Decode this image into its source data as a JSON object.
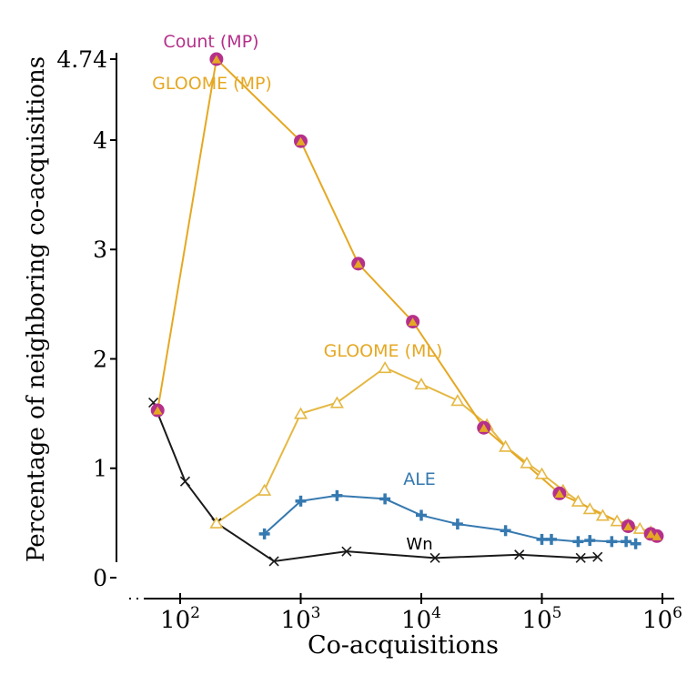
{
  "chart_data": {
    "type": "line",
    "title": "",
    "xlabel": "Co-acquisitions",
    "ylabel": "Percentage of neighboring co-acquisitions",
    "xscale": "log",
    "xlim": [
      35,
      1000000
    ],
    "ylim": [
      0,
      4.74
    ],
    "x_ticks": [
      {
        "value": 100,
        "base": "10",
        "exp": "2"
      },
      {
        "value": 1000,
        "base": "10",
        "exp": "3"
      },
      {
        "value": 10000,
        "base": "10",
        "exp": "4"
      },
      {
        "value": 100000,
        "base": "10",
        "exp": "5"
      },
      {
        "value": 1000000,
        "base": "10",
        "exp": "6"
      }
    ],
    "y_ticks": [
      {
        "value": 0,
        "label": "0"
      },
      {
        "value": 1,
        "label": "1"
      },
      {
        "value": 2,
        "label": "2"
      },
      {
        "value": 3,
        "label": "3"
      },
      {
        "value": 4,
        "label": "4"
      },
      {
        "value": 4.74,
        "label": "4.74"
      }
    ],
    "grid": false,
    "series": [
      {
        "name": "Count (MP)",
        "color": "#b5308a",
        "marker": "circle",
        "line": false,
        "x": [
          65,
          200,
          1000,
          3000,
          8500,
          33000,
          140000,
          520000,
          800000,
          900000
        ],
        "y": [
          1.53,
          4.74,
          3.99,
          2.87,
          2.34,
          1.37,
          0.77,
          0.47,
          0.4,
          0.38
        ]
      },
      {
        "name": "GLOOME (MP)",
        "color": "#e5a823",
        "marker": "filled-triangle",
        "line": true,
        "x": [
          65,
          200,
          1000,
          3000,
          8500,
          33000,
          140000,
          520000,
          800000,
          900000
        ],
        "y": [
          1.53,
          4.74,
          3.99,
          2.87,
          2.34,
          1.37,
          0.77,
          0.47,
          0.4,
          0.38
        ]
      },
      {
        "name": "GLOOME (ML)",
        "color": "#e5b843",
        "marker": "open-triangle",
        "line": true,
        "x": [
          200,
          500,
          1000,
          2000,
          5000,
          10000,
          20000,
          35000,
          50000,
          75000,
          100000,
          150000,
          200000,
          250000,
          320000,
          420000,
          520000,
          650000,
          800000
        ],
        "y": [
          0.5,
          0.8,
          1.5,
          1.6,
          1.92,
          1.77,
          1.62,
          1.4,
          1.2,
          1.05,
          0.95,
          0.8,
          0.7,
          0.63,
          0.57,
          0.52,
          0.49,
          0.45,
          0.42
        ]
      },
      {
        "name": "ALE",
        "color": "#3579b0",
        "marker": "plus",
        "line": true,
        "x": [
          500,
          1000,
          2000,
          5000,
          10000,
          20000,
          50000,
          100000,
          120000,
          200000,
          250000,
          380000,
          500000,
          600000
        ],
        "y": [
          0.4,
          0.7,
          0.75,
          0.72,
          0.57,
          0.49,
          0.43,
          0.35,
          0.35,
          0.33,
          0.34,
          0.33,
          0.33,
          0.31
        ]
      },
      {
        "name": "Wn",
        "color": "#1a1a1a",
        "marker": "x",
        "line": true,
        "x": [
          60,
          110,
          200,
          600,
          2400,
          13000,
          65000,
          210000,
          290000
        ],
        "y": [
          1.6,
          0.88,
          0.5,
          0.15,
          0.24,
          0.18,
          0.21,
          0.18,
          0.19
        ]
      }
    ],
    "annotations": [
      {
        "series": "Count (MP)",
        "text": "Count (MP)",
        "color": "#b5308a"
      },
      {
        "series": "GLOOME (MP)",
        "text": "GLOOME (MP)",
        "color": "#e5a823"
      },
      {
        "series": "GLOOME (ML)",
        "text": "GLOOME (ML)",
        "color": "#e5a823"
      },
      {
        "series": "ALE",
        "text": "ALE",
        "color": "#3579b0"
      },
      {
        "series": "Wn",
        "text": "Wn",
        "color": "#000000"
      }
    ]
  }
}
